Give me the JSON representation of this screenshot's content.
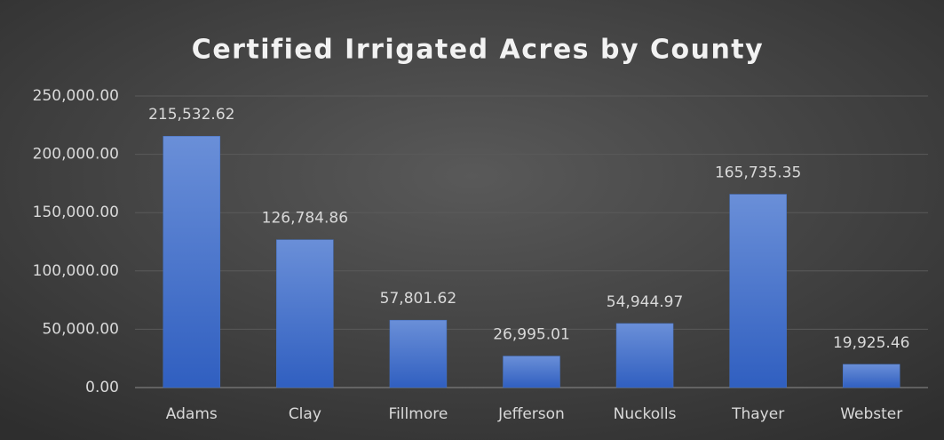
{
  "chart_data": {
    "type": "bar",
    "title": "Certified Irrigated Acres by County",
    "categories": [
      "Adams",
      "Clay",
      "Fillmore",
      "Jefferson",
      "Nuckolls",
      "Thayer",
      "Webster"
    ],
    "values": [
      215532.62,
      126784.86,
      57801.62,
      26995.01,
      54944.97,
      165735.35,
      19925.46
    ],
    "value_labels": [
      "215,532.62",
      "126,784.86",
      "57,801.62",
      "26,995.01",
      "54,944.97",
      "165,735.35",
      "19,925.46"
    ],
    "color": "#4472c4",
    "ylim": [
      0,
      250000
    ],
    "yticks": [
      {
        "value": 0,
        "label": "0.00"
      },
      {
        "value": 50000,
        "label": "50,000.00"
      },
      {
        "value": 100000,
        "label": "100,000.00"
      },
      {
        "value": 150000,
        "label": "150,000.00"
      },
      {
        "value": 200000,
        "label": "200,000.00"
      },
      {
        "value": 250000,
        "label": "250,000.00"
      }
    ],
    "grid": true
  }
}
